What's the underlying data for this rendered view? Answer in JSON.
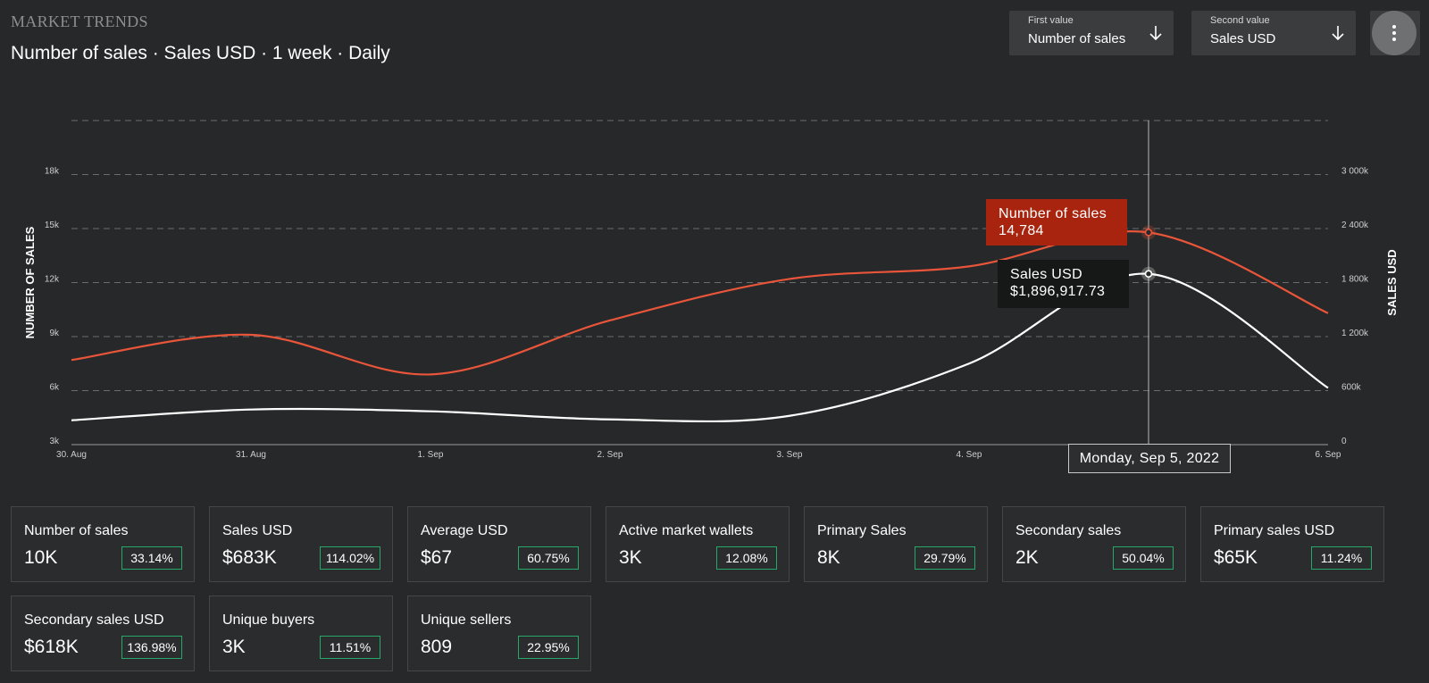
{
  "header": {
    "brand": "MARKET TRENDS",
    "subtitle": "Number of sales · Sales USD · 1 week · Daily"
  },
  "controls": {
    "first": {
      "label": "First value",
      "value": "Number of sales"
    },
    "second": {
      "label": "Second value",
      "value": "Sales USD"
    },
    "more_icon": "vertical-dots-icon",
    "arrow_icon": "arrow-down-icon"
  },
  "chart_data": {
    "type": "line",
    "x": [
      "30. Aug",
      "31. Aug",
      "1. Sep",
      "2. Sep",
      "3. Sep",
      "4. Sep",
      "Monday, Sep 5, 2022",
      "6. Sep"
    ],
    "x_tick_labels": [
      "30. Aug",
      "31. Aug",
      "1. Sep",
      "2. Sep",
      "3. Sep",
      "4. Sep",
      "6. Sep"
    ],
    "series": [
      {
        "name": "Number of sales",
        "axis": "left",
        "color": "#e8553a",
        "values": [
          7700,
          9100,
          6900,
          9900,
          12200,
          12900,
          14784,
          10300
        ]
      },
      {
        "name": "Sales USD",
        "axis": "right",
        "color": "#ffffff",
        "values": [
          270000,
          390000,
          370000,
          280000,
          320000,
          900000,
          1896917.73,
          630000
        ]
      }
    ],
    "y_left": {
      "label": "NUMBER OF SALES",
      "ticks": [
        3000,
        6000,
        9000,
        12000,
        15000,
        18000
      ],
      "tick_labels": [
        "3k",
        "6k",
        "9k",
        "12k",
        "15k",
        "18k"
      ],
      "range": [
        3000,
        21000
      ]
    },
    "y_right": {
      "label": "SALES USD",
      "ticks": [
        0,
        600000,
        1200000,
        1800000,
        2400000,
        3000000
      ],
      "tick_labels": [
        "0",
        "600k",
        "1 200k",
        "1 800k",
        "2 400k",
        "3 000k"
      ],
      "range": [
        0,
        3600000
      ]
    },
    "grid": true,
    "hover": {
      "index": 6,
      "date_label": "Monday, Sep 5, 2022",
      "tooltips": [
        {
          "title": "Number of sales",
          "value": "14,784",
          "color": "#a8240e"
        },
        {
          "title": "Sales USD",
          "value": "$1,896,917.73",
          "color": "#161717"
        }
      ]
    }
  },
  "stats": [
    {
      "title": "Number of sales",
      "value": "10K",
      "change": "33.14%"
    },
    {
      "title": "Sales USD",
      "value": "$683K",
      "change": "114.02%"
    },
    {
      "title": "Average USD",
      "value": "$67",
      "change": "60.75%"
    },
    {
      "title": "Active market wallets",
      "value": "3K",
      "change": "12.08%"
    },
    {
      "title": "Primary Sales",
      "value": "8K",
      "change": "29.79%"
    },
    {
      "title": "Secondary sales",
      "value": "2K",
      "change": "50.04%"
    },
    {
      "title": "Primary sales USD",
      "value": "$65K",
      "change": "11.24%"
    },
    {
      "title": "Secondary sales USD",
      "value": "$618K",
      "change": "136.98%"
    },
    {
      "title": "Unique buyers",
      "value": "3K",
      "change": "11.51%"
    },
    {
      "title": "Unique sellers",
      "value": "809",
      "change": "22.95%"
    }
  ]
}
